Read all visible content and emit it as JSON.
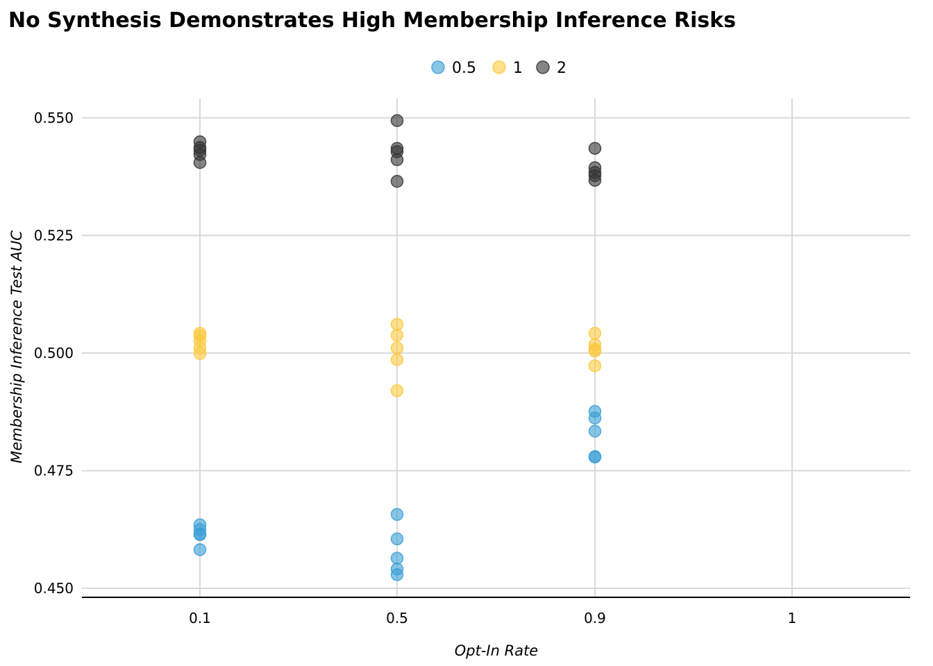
{
  "chart_data": {
    "type": "scatter",
    "title": "No Synthesis Demonstrates High Membership Inference Risks",
    "xlabel": "Opt-In Rate",
    "ylabel": "Membership Inference Test AUC",
    "categories": [
      "0.1",
      "0.5",
      "0.9",
      "1"
    ],
    "ylim": [
      0.448,
      0.555
    ],
    "yticks": [
      "0.450",
      "0.475",
      "0.500",
      "0.525",
      "0.550"
    ],
    "grid": true,
    "legend_position": "top-center",
    "series": [
      {
        "name": "0.5",
        "color": "#3b9fd6",
        "points": [
          {
            "x": "0.1",
            "y": 0.4635
          },
          {
            "x": "0.1",
            "y": 0.4625
          },
          {
            "x": "0.1",
            "y": 0.4615
          },
          {
            "x": "0.1",
            "y": 0.4614
          },
          {
            "x": "0.1",
            "y": 0.4582
          },
          {
            "x": "0.5",
            "y": 0.4657
          },
          {
            "x": "0.5",
            "y": 0.4605
          },
          {
            "x": "0.5",
            "y": 0.4564
          },
          {
            "x": "0.5",
            "y": 0.4541
          },
          {
            "x": "0.5",
            "y": 0.4529
          },
          {
            "x": "0.9",
            "y": 0.4876
          },
          {
            "x": "0.9",
            "y": 0.4862
          },
          {
            "x": "0.9",
            "y": 0.4834
          },
          {
            "x": "0.9",
            "y": 0.478
          },
          {
            "x": "0.9",
            "y": 0.4779
          }
        ]
      },
      {
        "name": "1",
        "color": "#fcc93f",
        "points": [
          {
            "x": "0.1",
            "y": 0.5042
          },
          {
            "x": "0.1",
            "y": 0.5037
          },
          {
            "x": "0.1",
            "y": 0.5026
          },
          {
            "x": "0.1",
            "y": 0.5011
          },
          {
            "x": "0.1",
            "y": 0.4999
          },
          {
            "x": "0.5",
            "y": 0.5061
          },
          {
            "x": "0.5",
            "y": 0.5038
          },
          {
            "x": "0.5",
            "y": 0.5011
          },
          {
            "x": "0.5",
            "y": 0.4986
          },
          {
            "x": "0.5",
            "y": 0.492
          },
          {
            "x": "0.9",
            "y": 0.5042
          },
          {
            "x": "0.9",
            "y": 0.5018
          },
          {
            "x": "0.9",
            "y": 0.5008
          },
          {
            "x": "0.9",
            "y": 0.5004
          },
          {
            "x": "0.9",
            "y": 0.4973
          }
        ]
      },
      {
        "name": "2",
        "color": "#333333",
        "points": [
          {
            "x": "0.1",
            "y": 0.5449
          },
          {
            "x": "0.1",
            "y": 0.5437
          },
          {
            "x": "0.1",
            "y": 0.5431
          },
          {
            "x": "0.1",
            "y": 0.5422
          },
          {
            "x": "0.1",
            "y": 0.5405
          },
          {
            "x": "0.5",
            "y": 0.5494
          },
          {
            "x": "0.5",
            "y": 0.5435
          },
          {
            "x": "0.5",
            "y": 0.5428
          },
          {
            "x": "0.5",
            "y": 0.5411
          },
          {
            "x": "0.5",
            "y": 0.5365
          },
          {
            "x": "0.9",
            "y": 0.5435
          },
          {
            "x": "0.9",
            "y": 0.5394
          },
          {
            "x": "0.9",
            "y": 0.5384
          },
          {
            "x": "0.9",
            "y": 0.5377
          },
          {
            "x": "0.9",
            "y": 0.5367
          }
        ]
      }
    ]
  }
}
